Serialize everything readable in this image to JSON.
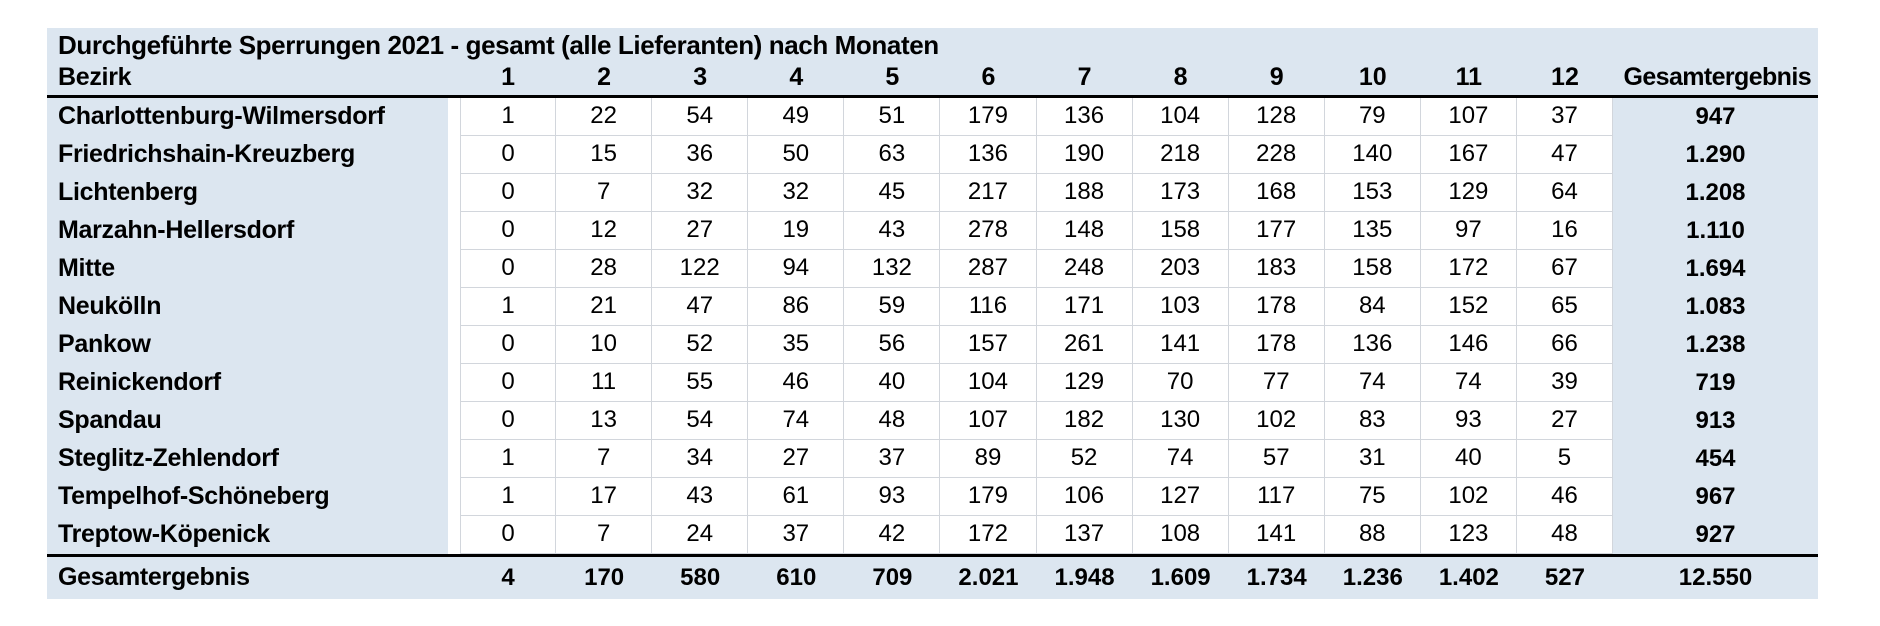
{
  "title": "Durchgeführte Sperrungen 2021 - gesamt (alle Lieferanten) nach Monaten",
  "colors": {
    "band_blue": "#dce6f0",
    "gridline": "#d2d6dc",
    "rule_black": "#000000"
  },
  "table": {
    "row_header_label": "Bezirk",
    "month_headers": [
      "1",
      "2",
      "3",
      "4",
      "5",
      "6",
      "7",
      "8",
      "9",
      "10",
      "11",
      "12"
    ],
    "total_header": "Gesamtergebnis",
    "rows": [
      {
        "bezirk": "Charlottenburg-Wilmersdorf",
        "values": [
          "1",
          "22",
          "54",
          "49",
          "51",
          "179",
          "136",
          "104",
          "128",
          "79",
          "107",
          "37"
        ],
        "total": "947"
      },
      {
        "bezirk": "Friedrichshain-Kreuzberg",
        "values": [
          "0",
          "15",
          "36",
          "50",
          "63",
          "136",
          "190",
          "218",
          "228",
          "140",
          "167",
          "47"
        ],
        "total": "1.290"
      },
      {
        "bezirk": "Lichtenberg",
        "values": [
          "0",
          "7",
          "32",
          "32",
          "45",
          "217",
          "188",
          "173",
          "168",
          "153",
          "129",
          "64"
        ],
        "total": "1.208"
      },
      {
        "bezirk": "Marzahn-Hellersdorf",
        "values": [
          "0",
          "12",
          "27",
          "19",
          "43",
          "278",
          "148",
          "158",
          "177",
          "135",
          "97",
          "16"
        ],
        "total": "1.110"
      },
      {
        "bezirk": "Mitte",
        "values": [
          "0",
          "28",
          "122",
          "94",
          "132",
          "287",
          "248",
          "203",
          "183",
          "158",
          "172",
          "67"
        ],
        "total": "1.694"
      },
      {
        "bezirk": "Neukölln",
        "values": [
          "1",
          "21",
          "47",
          "86",
          "59",
          "116",
          "171",
          "103",
          "178",
          "84",
          "152",
          "65"
        ],
        "total": "1.083"
      },
      {
        "bezirk": "Pankow",
        "values": [
          "0",
          "10",
          "52",
          "35",
          "56",
          "157",
          "261",
          "141",
          "178",
          "136",
          "146",
          "66"
        ],
        "total": "1.238"
      },
      {
        "bezirk": "Reinickendorf",
        "values": [
          "0",
          "11",
          "55",
          "46",
          "40",
          "104",
          "129",
          "70",
          "77",
          "74",
          "74",
          "39"
        ],
        "total": "719"
      },
      {
        "bezirk": "Spandau",
        "values": [
          "0",
          "13",
          "54",
          "74",
          "48",
          "107",
          "182",
          "130",
          "102",
          "83",
          "93",
          "27"
        ],
        "total": "913"
      },
      {
        "bezirk": "Steglitz-Zehlendorf",
        "values": [
          "1",
          "7",
          "34",
          "27",
          "37",
          "89",
          "52",
          "74",
          "57",
          "31",
          "40",
          "5"
        ],
        "total": "454"
      },
      {
        "bezirk": "Tempelhof-Schöneberg",
        "values": [
          "1",
          "17",
          "43",
          "61",
          "93",
          "179",
          "106",
          "127",
          "117",
          "75",
          "102",
          "46"
        ],
        "total": "967"
      },
      {
        "bezirk": "Treptow-Köpenick",
        "values": [
          "0",
          "7",
          "24",
          "37",
          "42",
          "172",
          "137",
          "108",
          "141",
          "88",
          "123",
          "48"
        ],
        "total": "927"
      }
    ],
    "footer": {
      "label": "Gesamtergebnis",
      "values": [
        "4",
        "170",
        "580",
        "610",
        "709",
        "2.021",
        "1.948",
        "1.609",
        "1.734",
        "1.236",
        "1.402",
        "527"
      ],
      "total": "12.550"
    }
  }
}
